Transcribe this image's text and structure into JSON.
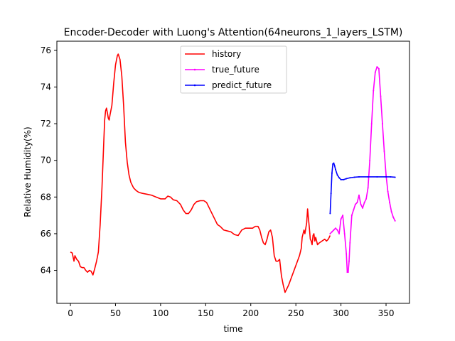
{
  "chart_data": {
    "type": "line",
    "title": "Encoder-Decoder with Luong's Attention(64neurons_1_layers_LSTM)",
    "xlabel": "time",
    "ylabel": "Relative Humidity(%)",
    "xlim": [
      -15,
      376
    ],
    "ylim": [
      62.2,
      76.5
    ],
    "xticks": [
      0,
      50,
      100,
      150,
      200,
      250,
      300,
      350
    ],
    "yticks": [
      64,
      66,
      68,
      70,
      72,
      74,
      76
    ],
    "grid": false,
    "legend_position": "upper-center",
    "series": [
      {
        "name": "history",
        "color": "#ff0000",
        "marker": "none",
        "points": [
          [
            0,
            65.0
          ],
          [
            2,
            64.95
          ],
          [
            4,
            64.5
          ],
          [
            5,
            64.8
          ],
          [
            7,
            64.6
          ],
          [
            9,
            64.5
          ],
          [
            11,
            64.2
          ],
          [
            13,
            64.15
          ],
          [
            15,
            64.15
          ],
          [
            17,
            64.0
          ],
          [
            19,
            63.9
          ],
          [
            21,
            64.0
          ],
          [
            23,
            63.95
          ],
          [
            25,
            63.75
          ],
          [
            27,
            64.1
          ],
          [
            29,
            64.5
          ],
          [
            31,
            65.0
          ],
          [
            33,
            66.5
          ],
          [
            35,
            68.5
          ],
          [
            37,
            71.0
          ],
          [
            38,
            72.2
          ],
          [
            39,
            72.7
          ],
          [
            40,
            72.85
          ],
          [
            41,
            72.6
          ],
          [
            42,
            72.3
          ],
          [
            43,
            72.2
          ],
          [
            44,
            72.5
          ],
          [
            46,
            73.0
          ],
          [
            48,
            74.2
          ],
          [
            50,
            75.2
          ],
          [
            52,
            75.7
          ],
          [
            53,
            75.8
          ],
          [
            55,
            75.5
          ],
          [
            57,
            74.6
          ],
          [
            59,
            73.0
          ],
          [
            61,
            71.0
          ],
          [
            63,
            69.9
          ],
          [
            65,
            69.2
          ],
          [
            67,
            68.8
          ],
          [
            70,
            68.5
          ],
          [
            73,
            68.35
          ],
          [
            76,
            68.25
          ],
          [
            80,
            68.2
          ],
          [
            85,
            68.15
          ],
          [
            90,
            68.1
          ],
          [
            95,
            68.0
          ],
          [
            100,
            67.9
          ],
          [
            105,
            67.9
          ],
          [
            108,
            68.05
          ],
          [
            111,
            68.0
          ],
          [
            114,
            67.85
          ],
          [
            118,
            67.8
          ],
          [
            122,
            67.6
          ],
          [
            125,
            67.3
          ],
          [
            128,
            67.1
          ],
          [
            131,
            67.1
          ],
          [
            134,
            67.3
          ],
          [
            137,
            67.6
          ],
          [
            140,
            67.75
          ],
          [
            144,
            67.8
          ],
          [
            148,
            67.8
          ],
          [
            151,
            67.7
          ],
          [
            154,
            67.4
          ],
          [
            157,
            67.1
          ],
          [
            160,
            66.8
          ],
          [
            163,
            66.5
          ],
          [
            166,
            66.4
          ],
          [
            170,
            66.2
          ],
          [
            174,
            66.15
          ],
          [
            178,
            66.1
          ],
          [
            182,
            65.95
          ],
          [
            186,
            65.9
          ],
          [
            190,
            66.2
          ],
          [
            194,
            66.3
          ],
          [
            198,
            66.3
          ],
          [
            202,
            66.3
          ],
          [
            205,
            66.4
          ],
          [
            208,
            66.4
          ],
          [
            210,
            66.2
          ],
          [
            212,
            65.8
          ],
          [
            214,
            65.5
          ],
          [
            216,
            65.4
          ],
          [
            218,
            65.7
          ],
          [
            220,
            66.1
          ],
          [
            222,
            66.2
          ],
          [
            224,
            65.8
          ],
          [
            226,
            64.8
          ],
          [
            228,
            64.5
          ],
          [
            230,
            64.5
          ],
          [
            232,
            64.6
          ],
          [
            234,
            63.7
          ],
          [
            236,
            63.2
          ],
          [
            238,
            62.8
          ],
          [
            240,
            63.0
          ],
          [
            242,
            63.2
          ],
          [
            245,
            63.6
          ],
          [
            248,
            64.0
          ],
          [
            251,
            64.4
          ],
          [
            254,
            64.8
          ],
          [
            256,
            65.2
          ],
          [
            257,
            65.8
          ],
          [
            258,
            66.0
          ],
          [
            259,
            66.2
          ],
          [
            260,
            66.0
          ],
          [
            261,
            66.3
          ],
          [
            262,
            66.6
          ],
          [
            263,
            67.35
          ],
          [
            264,
            66.8
          ],
          [
            265,
            66.3
          ],
          [
            266,
            65.7
          ],
          [
            267,
            65.6
          ],
          [
            268,
            65.4
          ],
          [
            269,
            65.9
          ],
          [
            270,
            66.0
          ],
          [
            271,
            65.6
          ],
          [
            272,
            65.8
          ],
          [
            274,
            65.4
          ],
          [
            276,
            65.5
          ],
          [
            279,
            65.6
          ],
          [
            282,
            65.7
          ],
          [
            284,
            65.6
          ],
          [
            286,
            65.7
          ],
          [
            288,
            65.9
          ]
        ]
      },
      {
        "name": "true_future",
        "color": "#ff00ff",
        "marker": "dot",
        "points": [
          [
            288,
            66.0
          ],
          [
            290,
            66.1
          ],
          [
            292,
            66.2
          ],
          [
            294,
            66.3
          ],
          [
            296,
            66.2
          ],
          [
            298,
            66.0
          ],
          [
            300,
            66.8
          ],
          [
            302,
            67.0
          ],
          [
            304,
            66.0
          ],
          [
            306,
            64.9
          ],
          [
            307,
            63.9
          ],
          [
            308,
            63.9
          ],
          [
            309,
            64.5
          ],
          [
            310,
            65.5
          ],
          [
            312,
            67.0
          ],
          [
            314,
            67.3
          ],
          [
            316,
            67.6
          ],
          [
            318,
            67.7
          ],
          [
            320,
            68.1
          ],
          [
            322,
            67.6
          ],
          [
            324,
            67.4
          ],
          [
            326,
            67.7
          ],
          [
            328,
            67.9
          ],
          [
            330,
            68.5
          ],
          [
            332,
            70.0
          ],
          [
            334,
            72.0
          ],
          [
            336,
            73.8
          ],
          [
            338,
            74.8
          ],
          [
            340,
            75.1
          ],
          [
            342,
            75.0
          ],
          [
            344,
            73.5
          ],
          [
            346,
            72.0
          ],
          [
            348,
            70.5
          ],
          [
            350,
            69.2
          ],
          [
            352,
            68.3
          ],
          [
            354,
            67.7
          ],
          [
            356,
            67.2
          ],
          [
            358,
            66.9
          ],
          [
            360,
            66.7
          ]
        ]
      },
      {
        "name": "predict_future",
        "color": "#0000ff",
        "marker": "dot",
        "points": [
          [
            288,
            67.1
          ],
          [
            289,
            68.2
          ],
          [
            290,
            69.3
          ],
          [
            291,
            69.8
          ],
          [
            292,
            69.85
          ],
          [
            293,
            69.7
          ],
          [
            294,
            69.5
          ],
          [
            296,
            69.2
          ],
          [
            298,
            69.05
          ],
          [
            300,
            68.95
          ],
          [
            303,
            68.95
          ],
          [
            306,
            69.0
          ],
          [
            310,
            69.05
          ],
          [
            315,
            69.08
          ],
          [
            320,
            69.1
          ],
          [
            330,
            69.1
          ],
          [
            340,
            69.1
          ],
          [
            350,
            69.1
          ],
          [
            355,
            69.1
          ],
          [
            360,
            69.08
          ]
        ]
      }
    ]
  }
}
